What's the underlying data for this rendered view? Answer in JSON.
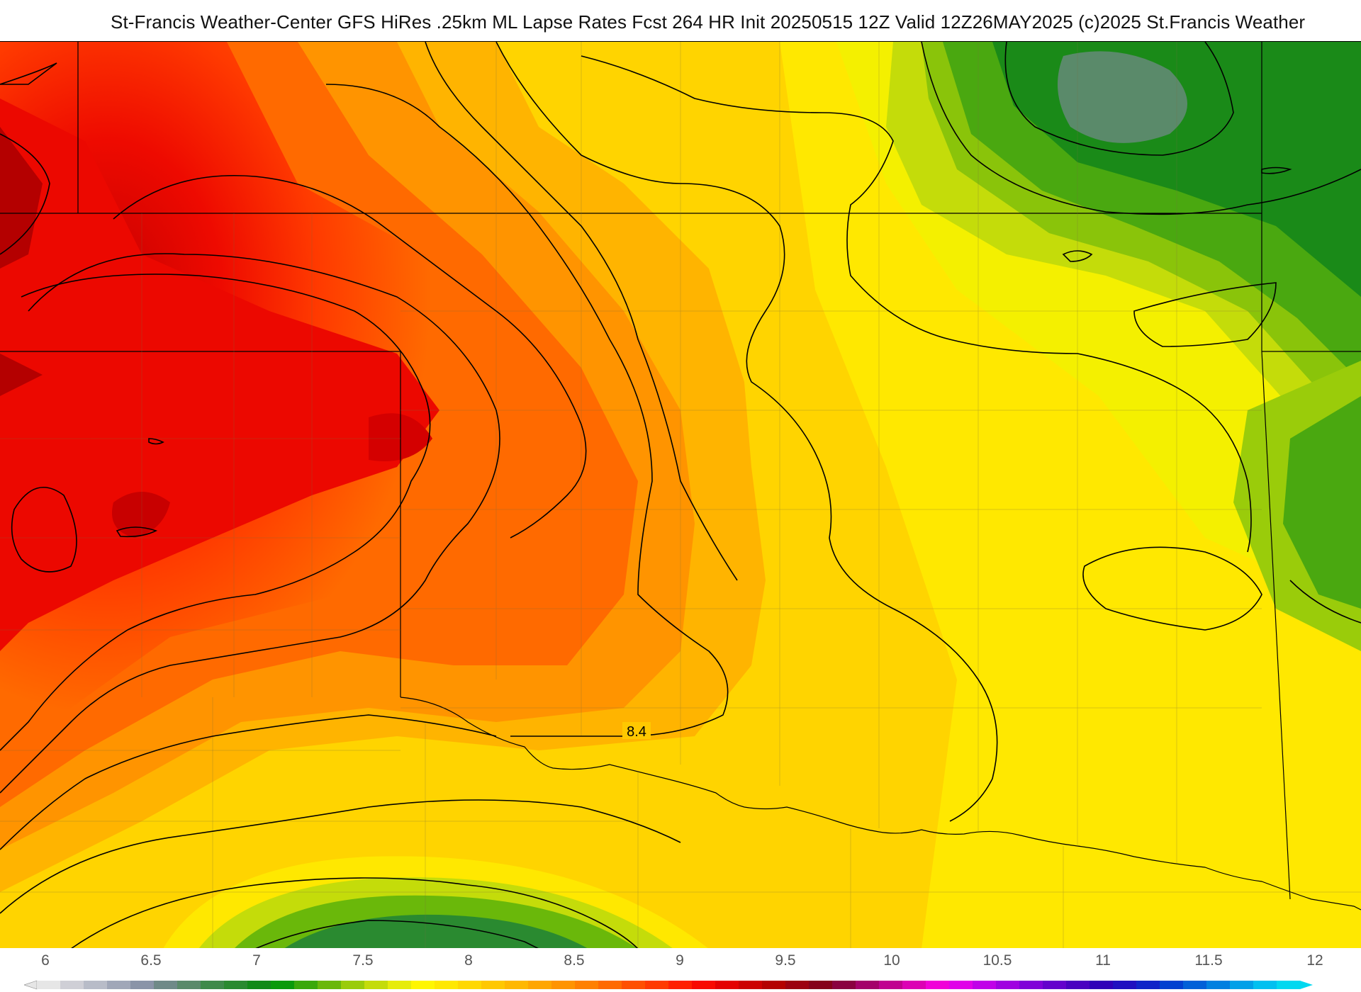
{
  "header": {
    "title": "St-Francis Weather-Center GFS HiRes .25km ML Lapse Rates  Fcst 264 HR Init 20250515 12Z  Valid 12Z26MAY2025    (c)2025 St.Francis Weather"
  },
  "map": {
    "contour_label": "8.4"
  },
  "colorbar": {
    "ticks": [
      "6",
      "6.5",
      "7",
      "7.5",
      "8",
      "8.5",
      "9",
      "9.5",
      "10",
      "10.5",
      "11",
      "11.5",
      "12"
    ],
    "colors": [
      "#e6e6e6",
      "#cfcfd6",
      "#b8bcc8",
      "#a0a7b8",
      "#8a94a8",
      "#6f8a88",
      "#5a8a6a",
      "#3f8a4a",
      "#2a8a30",
      "#128a18",
      "#0a9a0a",
      "#3aa80a",
      "#6ab80a",
      "#9acc0a",
      "#c4dc0a",
      "#e6ec0a",
      "#fff600",
      "#ffe800",
      "#ffd800",
      "#ffc800",
      "#ffb800",
      "#ffa600",
      "#ff9400",
      "#ff8000",
      "#ff6a00",
      "#ff5000",
      "#ff3a00",
      "#ff2000",
      "#f80a00",
      "#e40000",
      "#cc0000",
      "#b40000",
      "#9c0010",
      "#86001a",
      "#8a0040",
      "#a4006a",
      "#c00090",
      "#dc00b4",
      "#f000d8",
      "#e000e8",
      "#c000e8",
      "#a000e0",
      "#8000d8",
      "#6400cc",
      "#4a00c0",
      "#3000b8",
      "#2010c0",
      "#1024c8",
      "#0040d0",
      "#0060d8",
      "#0080e0",
      "#00a0e8",
      "#00c0f0",
      "#00d8f0"
    ]
  }
}
